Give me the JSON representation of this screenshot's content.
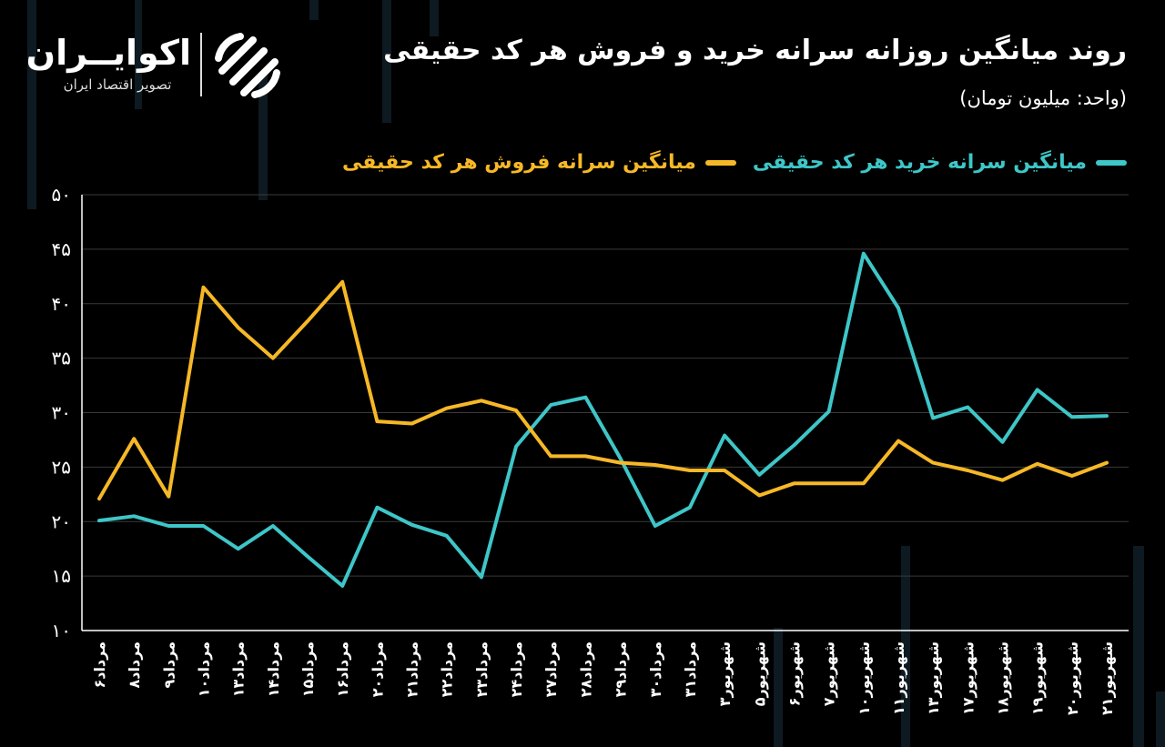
{
  "header": {
    "title": "روند میانگین روزانه سرانه خرید و فروش هر کد حقیقی",
    "subtitle": "(واحد: میلیون تومان)"
  },
  "logo": {
    "brand": "اکوایــران",
    "tagline": "تصویر اقتصاد ایران"
  },
  "colors": {
    "buy": "#3ec6c8",
    "sell": "#f6b826",
    "grid": "#3a3a3a",
    "axis": "#ffffff"
  },
  "chart_data": {
    "type": "line",
    "x": [
      "مرداد۶",
      "مرداد۸",
      "مرداد۹",
      "مرداد۱۰",
      "مرداد۱۳",
      "مرداد۱۴",
      "مرداد۱۵",
      "مرداد۱۶",
      "مرداد۲۰",
      "مرداد۲۱",
      "مرداد۲۲",
      "مرداد۲۳",
      "مرداد۲۴",
      "مرداد۲۷",
      "مرداد۲۸",
      "مرداد۲۹",
      "مرداد۳۰",
      "مرداد۳۱",
      "شهریور۳",
      "شهریور۵",
      "شهریور۶",
      "شهریور۷",
      "شهریور۱۰",
      "شهریور۱۱",
      "شهریور۱۳",
      "شهریور۱۷",
      "شهریور۱۸",
      "شهریور۱۹",
      "شهریور۲۰",
      "شهریور۲۱"
    ],
    "series": [
      {
        "name": "میانگین سرانه خرید هر کد حقیقی",
        "color": "#3ec6c8",
        "values": [
          20.1,
          20.5,
          19.6,
          19.6,
          17.5,
          19.6,
          16.8,
          14.1,
          21.3,
          19.7,
          18.7,
          14.9,
          26.9,
          30.7,
          31.4,
          25.8,
          19.6,
          21.3,
          27.9,
          24.3,
          27.0,
          30.1,
          44.6,
          39.6,
          29.5,
          30.5,
          27.3,
          32.1,
          29.6,
          29.7
        ]
      },
      {
        "name": "میانگین سرانه فروش هر کد حقیقی",
        "color": "#f6b826",
        "values": [
          22.1,
          27.6,
          22.3,
          41.5,
          37.8,
          35.0,
          38.4,
          42.0,
          29.2,
          29.0,
          30.4,
          31.1,
          30.2,
          26.0,
          26.0,
          25.4,
          25.2,
          24.7,
          24.7,
          22.4,
          23.5,
          23.5,
          23.5,
          27.4,
          25.4,
          24.7,
          23.8,
          25.3,
          24.2,
          25.4
        ]
      }
    ],
    "ylim": [
      10,
      50
    ],
    "yticks": [
      10,
      15,
      20,
      25,
      30,
      35,
      40,
      45,
      50
    ],
    "ytick_labels": [
      "۱۰",
      "۱۵",
      "۲۰",
      "۲۵",
      "۳۰",
      "۳۵",
      "۴۰",
      "۴۵",
      "۵۰"
    ],
    "grid": true,
    "legend_position": "top-right"
  }
}
